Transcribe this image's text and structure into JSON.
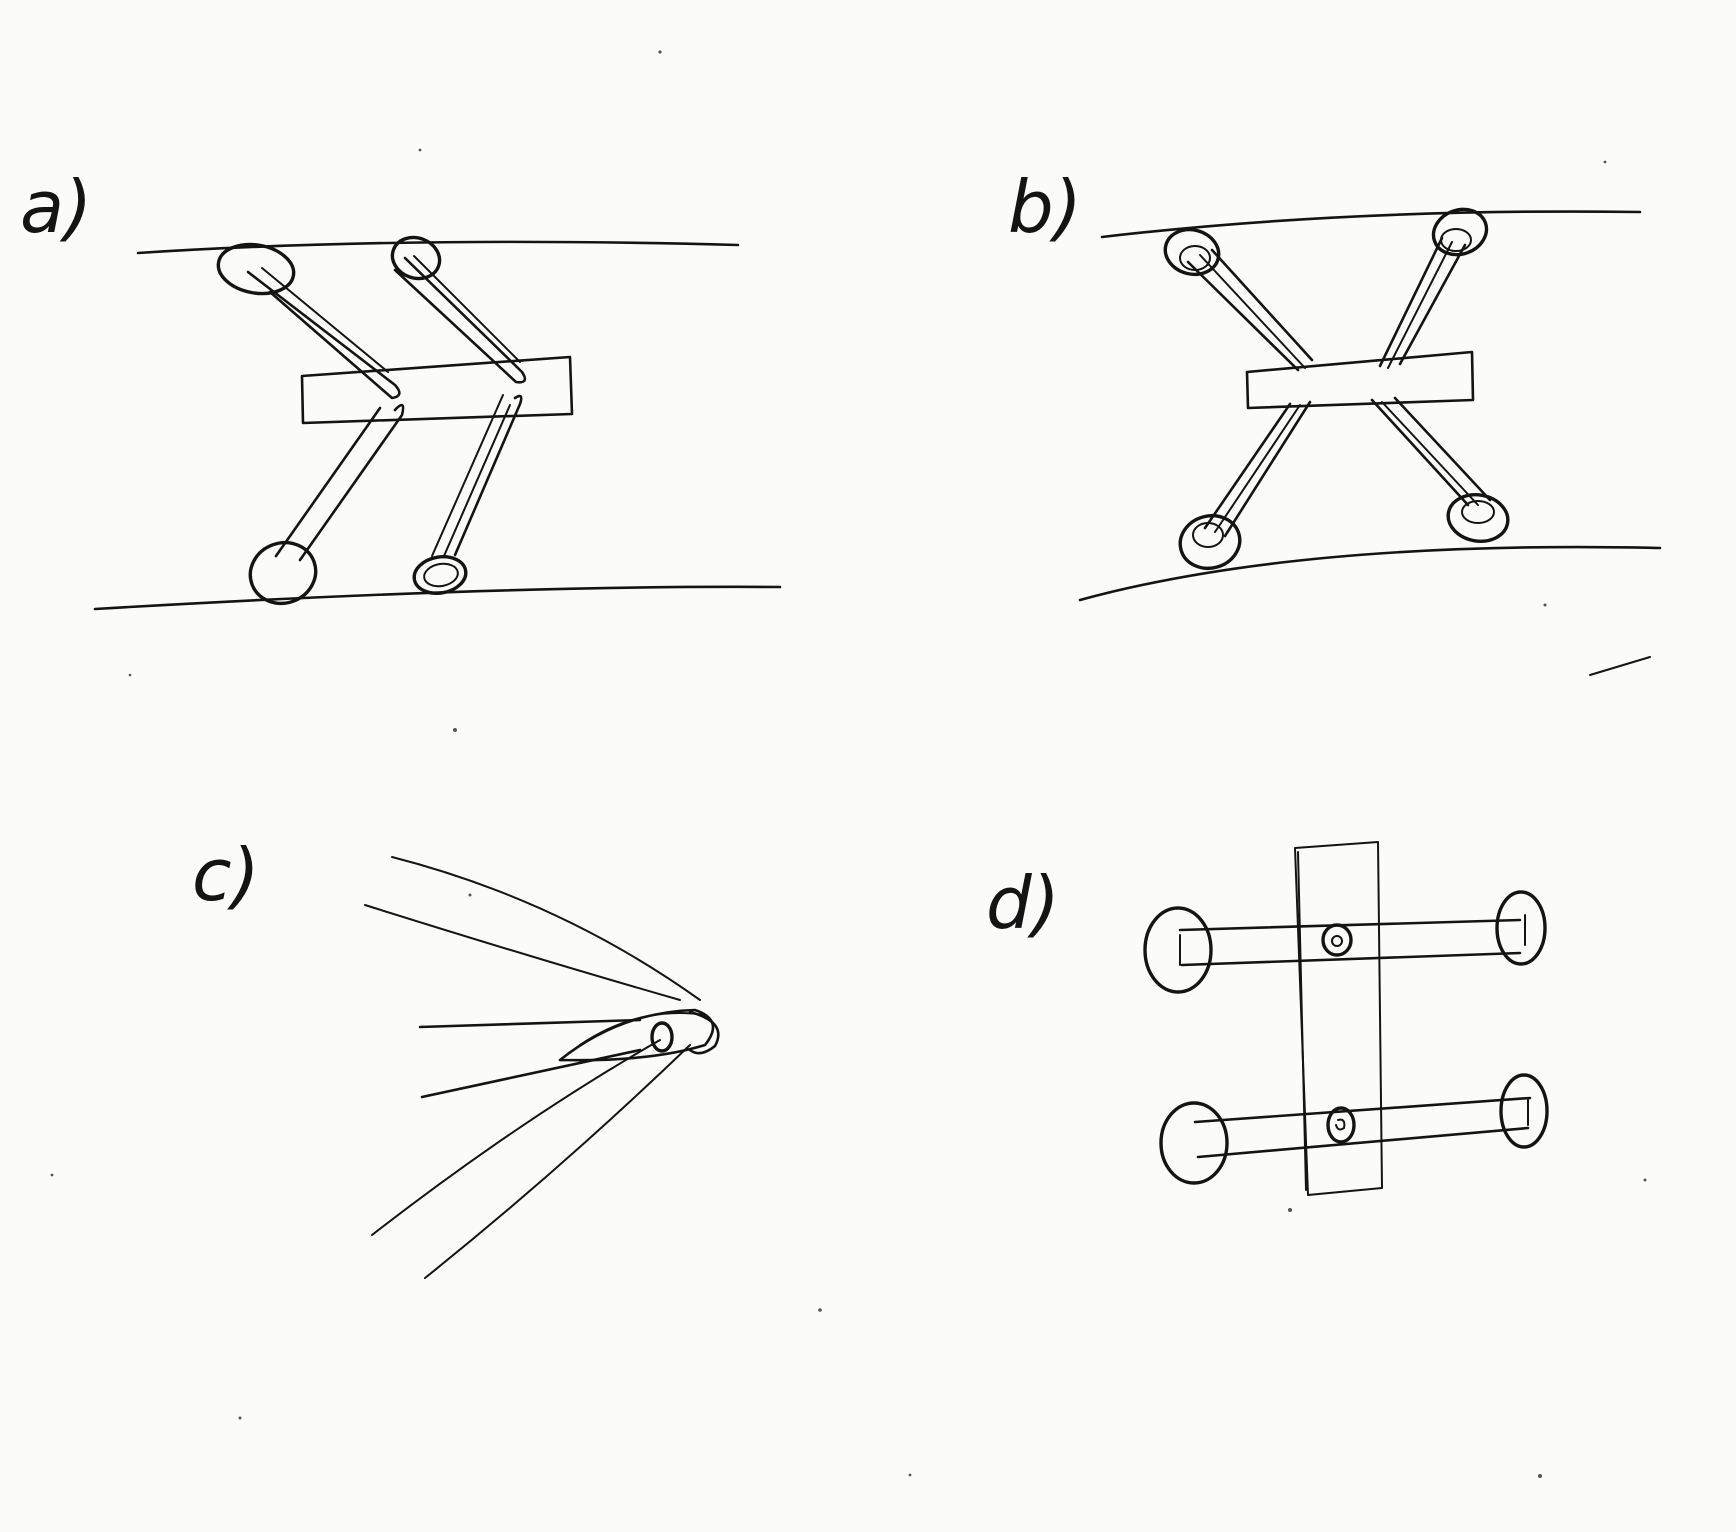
{
  "panels": [
    {
      "id": "a",
      "label": "a)"
    },
    {
      "id": "b",
      "label": "b)"
    },
    {
      "id": "c",
      "label": "c)"
    },
    {
      "id": "d",
      "label": "d)"
    }
  ],
  "colors": {
    "paper": "#fbfbfa",
    "ink": "#141414"
  }
}
